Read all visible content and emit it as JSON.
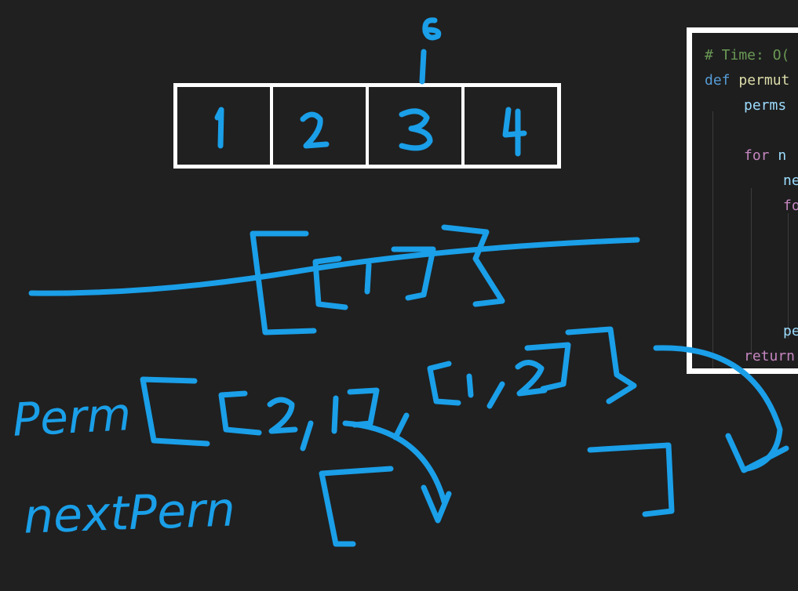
{
  "array": {
    "cells": [
      "1",
      "2",
      "3",
      "4"
    ],
    "annotation_above_index_2": "6"
  },
  "code_panel": {
    "lines": [
      {
        "indent": 0,
        "tokens": [
          {
            "text": "# Time: O(",
            "kind": "comment"
          }
        ]
      },
      {
        "indent": 0,
        "tokens": [
          {
            "text": "def",
            "kind": "keyword"
          },
          {
            "text": " permut",
            "kind": "func"
          }
        ]
      },
      {
        "indent": 1,
        "tokens": [
          {
            "text": "perms",
            "kind": "var"
          }
        ]
      },
      {
        "indent": 1,
        "tokens": []
      },
      {
        "indent": 1,
        "tokens": [
          {
            "text": "for",
            "kind": "ctrl"
          },
          {
            "text": " n",
            "kind": "var"
          }
        ]
      },
      {
        "indent": 2,
        "tokens": [
          {
            "text": "ne",
            "kind": "var"
          }
        ]
      },
      {
        "indent": 2,
        "tokens": [
          {
            "text": "fo",
            "kind": "ctrl"
          }
        ]
      },
      {
        "indent": 3,
        "tokens": []
      },
      {
        "indent": 3,
        "tokens": []
      },
      {
        "indent": 3,
        "tokens": []
      },
      {
        "indent": 3,
        "tokens": []
      },
      {
        "indent": 2,
        "tokens": [
          {
            "text": "pe",
            "kind": "var"
          }
        ]
      },
      {
        "indent": 1,
        "tokens": [
          {
            "text": "return",
            "kind": "ctrl"
          }
        ]
      }
    ]
  },
  "handwriting": {
    "crossed_out": "[[1]]",
    "perm_label": "Perm",
    "perm_values": "[[2,1], [1,2]]",
    "next_perm_label": "nextPern",
    "next_perm_values": "[",
    "closing_bracket": "]"
  },
  "colors": {
    "background": "#202020",
    "ink": "#1a9fe8",
    "box": "#ffffff"
  }
}
